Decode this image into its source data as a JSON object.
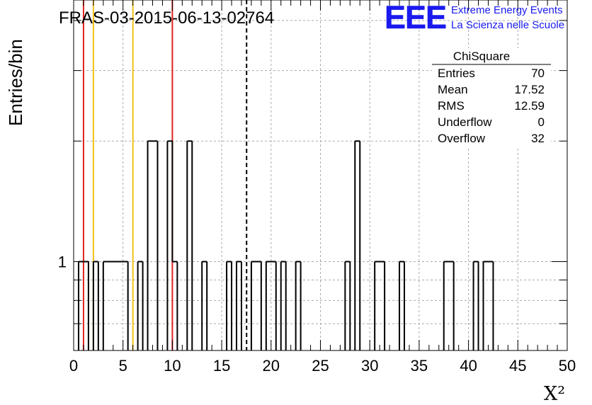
{
  "header": {
    "title": "FRAS-03-2015-06-13-02764",
    "logo_text": "EEE",
    "logo_line1": "Extreme Energy Events",
    "logo_line2": "La Scienza nelle Scuole"
  },
  "stats_box": {
    "title": "ChiSquare",
    "rows": [
      {
        "label": "Entries",
        "value": "70"
      },
      {
        "label": "Mean",
        "value": "17.52"
      },
      {
        "label": "RMS",
        "value": "12.59"
      },
      {
        "label": "Underflow",
        "value": "0"
      },
      {
        "label": "Overflow",
        "value": "32"
      }
    ]
  },
  "chart_data": {
    "type": "histogram",
    "title": "FRAS-03-2015-06-13-02764",
    "xlabel": "X²",
    "ylabel": "Entries/bin",
    "xlim": [
      0,
      50
    ],
    "y_scale": "log",
    "ylim": [
      0.6,
      4.5
    ],
    "bin_width": 0.5,
    "x_ticks": [
      0,
      5,
      10,
      15,
      20,
      25,
      30,
      35,
      40,
      45,
      50
    ],
    "x_tick_labels": [
      "0",
      "5",
      "10",
      "15",
      "20",
      "25",
      "30",
      "35",
      "40",
      "45",
      "50"
    ],
    "y_tick_labels": [
      {
        "value": 1,
        "label": "1"
      }
    ],
    "grid": true,
    "bins": [
      {
        "x0": 0.5,
        "x1": 1.0,
        "count": 1
      },
      {
        "x0": 1.0,
        "x1": 1.5,
        "count": 1
      },
      {
        "x0": 2.0,
        "x1": 2.5,
        "count": 1
      },
      {
        "x0": 3.0,
        "x1": 3.5,
        "count": 1
      },
      {
        "x0": 3.5,
        "x1": 4.0,
        "count": 1
      },
      {
        "x0": 4.0,
        "x1": 4.5,
        "count": 1
      },
      {
        "x0": 4.5,
        "x1": 5.0,
        "count": 1
      },
      {
        "x0": 5.0,
        "x1": 5.5,
        "count": 1
      },
      {
        "x0": 6.5,
        "x1": 7.0,
        "count": 1
      },
      {
        "x0": 7.5,
        "x1": 8.0,
        "count": 2
      },
      {
        "x0": 8.0,
        "x1": 8.5,
        "count": 2
      },
      {
        "x0": 9.5,
        "x1": 10.0,
        "count": 2
      },
      {
        "x0": 10.0,
        "x1": 10.5,
        "count": 1
      },
      {
        "x0": 11.5,
        "x1": 12.0,
        "count": 2
      },
      {
        "x0": 13.0,
        "x1": 13.5,
        "count": 1
      },
      {
        "x0": 15.5,
        "x1": 16.0,
        "count": 1
      },
      {
        "x0": 16.5,
        "x1": 17.0,
        "count": 1
      },
      {
        "x0": 18.0,
        "x1": 18.5,
        "count": 1
      },
      {
        "x0": 18.5,
        "x1": 19.0,
        "count": 1
      },
      {
        "x0": 19.5,
        "x1": 20.0,
        "count": 1
      },
      {
        "x0": 20.0,
        "x1": 20.5,
        "count": 1
      },
      {
        "x0": 21.0,
        "x1": 21.5,
        "count": 1
      },
      {
        "x0": 22.5,
        "x1": 23.0,
        "count": 1
      },
      {
        "x0": 27.5,
        "x1": 28.0,
        "count": 1
      },
      {
        "x0": 28.5,
        "x1": 29.0,
        "count": 2
      },
      {
        "x0": 30.5,
        "x1": 31.0,
        "count": 1
      },
      {
        "x0": 31.0,
        "x1": 31.5,
        "count": 1
      },
      {
        "x0": 33.0,
        "x1": 33.5,
        "count": 1
      },
      {
        "x0": 37.5,
        "x1": 38.0,
        "count": 1
      },
      {
        "x0": 38.0,
        "x1": 38.5,
        "count": 1
      },
      {
        "x0": 40.5,
        "x1": 41.0,
        "count": 1
      },
      {
        "x0": 41.5,
        "x1": 42.0,
        "count": 1
      },
      {
        "x0": 42.0,
        "x1": 42.5,
        "count": 1
      }
    ],
    "vertical_lines": [
      {
        "x": 1,
        "color": "#dd2222",
        "style": "solid"
      },
      {
        "x": 2,
        "color": "#f2c11c",
        "style": "solid"
      },
      {
        "x": 6,
        "color": "#f2c11c",
        "style": "solid"
      },
      {
        "x": 10,
        "color": "#dd2222",
        "style": "solid"
      },
      {
        "x": 17.52,
        "color": "#000000",
        "style": "dashed"
      }
    ],
    "colors": {
      "histogram": "#000000",
      "grid": "#aaaaaa",
      "logo": "#1a1aee"
    }
  }
}
